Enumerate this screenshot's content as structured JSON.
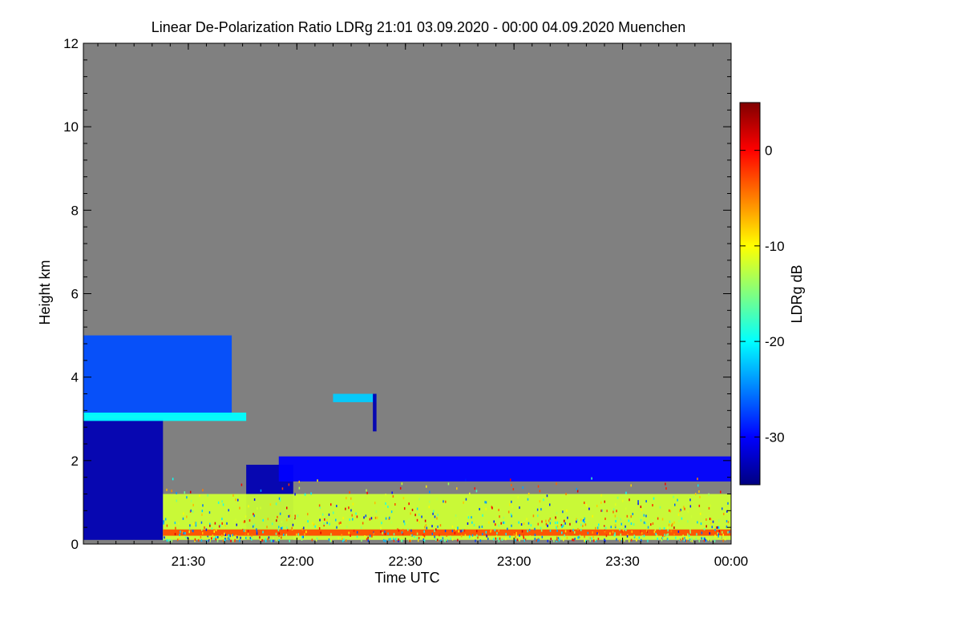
{
  "chart_data": {
    "type": "heatmap",
    "title": "Linear De-Polarization Ratio LDRg   21:01 03.09.2020 - 00:00 04.09.2020 Muenchen",
    "xlabel": "Time UTC",
    "ylabel": "Height km",
    "x_range_minutes": [
      1261,
      1440
    ],
    "ylim": [
      0,
      12
    ],
    "x_ticks": [
      {
        "label": "21:30",
        "minute": 1290
      },
      {
        "label": "22:00",
        "minute": 1320
      },
      {
        "label": "22:30",
        "minute": 1350
      },
      {
        "label": "23:00",
        "minute": 1380
      },
      {
        "label": "23:30",
        "minute": 1410
      },
      {
        "label": "00:00",
        "minute": 1440
      }
    ],
    "y_ticks": [
      0,
      2,
      4,
      6,
      8,
      10,
      12
    ],
    "background_color": "#808080",
    "colorbar": {
      "label": "LDRg dB",
      "range": [
        -35,
        5
      ],
      "ticks": [
        0,
        -10,
        -20,
        -30
      ],
      "colors": [
        "#000080",
        "#0000ff",
        "#0080ff",
        "#00ffff",
        "#80ff80",
        "#ffff00",
        "#ff8000",
        "#ff0000",
        "#800000"
      ]
    },
    "features": [
      {
        "name": "dense low layer (early)",
        "t": [
          1261,
          1283
        ],
        "h": [
          0.1,
          3.0
        ],
        "ldr": -33
      },
      {
        "name": "upper cloud band",
        "t": [
          1261,
          1302
        ],
        "h": [
          3.1,
          5.0
        ],
        "ldr": -27
      },
      {
        "name": "bright layer ~3 km",
        "t": [
          1261,
          1306
        ],
        "h": [
          2.95,
          3.15
        ],
        "ldr": -20
      },
      {
        "name": "fall streak",
        "t": [
          1306,
          1319
        ],
        "h": [
          0.1,
          1.9
        ],
        "ldr": -33
      },
      {
        "name": "thin layer 3.5 km",
        "t": [
          1330,
          1342
        ],
        "h": [
          3.4,
          3.6
        ],
        "ldr": -22
      },
      {
        "name": "small plume",
        "t": [
          1341,
          1342
        ],
        "h": [
          2.7,
          3.6
        ],
        "ldr": -33
      },
      {
        "name": "elevated layer ~1.8 km",
        "t": [
          1315,
          1440
        ],
        "h": [
          1.5,
          2.1
        ],
        "ldr": -30
      },
      {
        "name": "boundary-layer aerosol",
        "t": [
          1283,
          1440
        ],
        "h": [
          0.1,
          1.2
        ],
        "ldr": -12
      },
      {
        "name": "near-surface band",
        "t": [
          1283,
          1440
        ],
        "h": [
          0.2,
          0.35
        ],
        "ldr": -3
      }
    ]
  }
}
